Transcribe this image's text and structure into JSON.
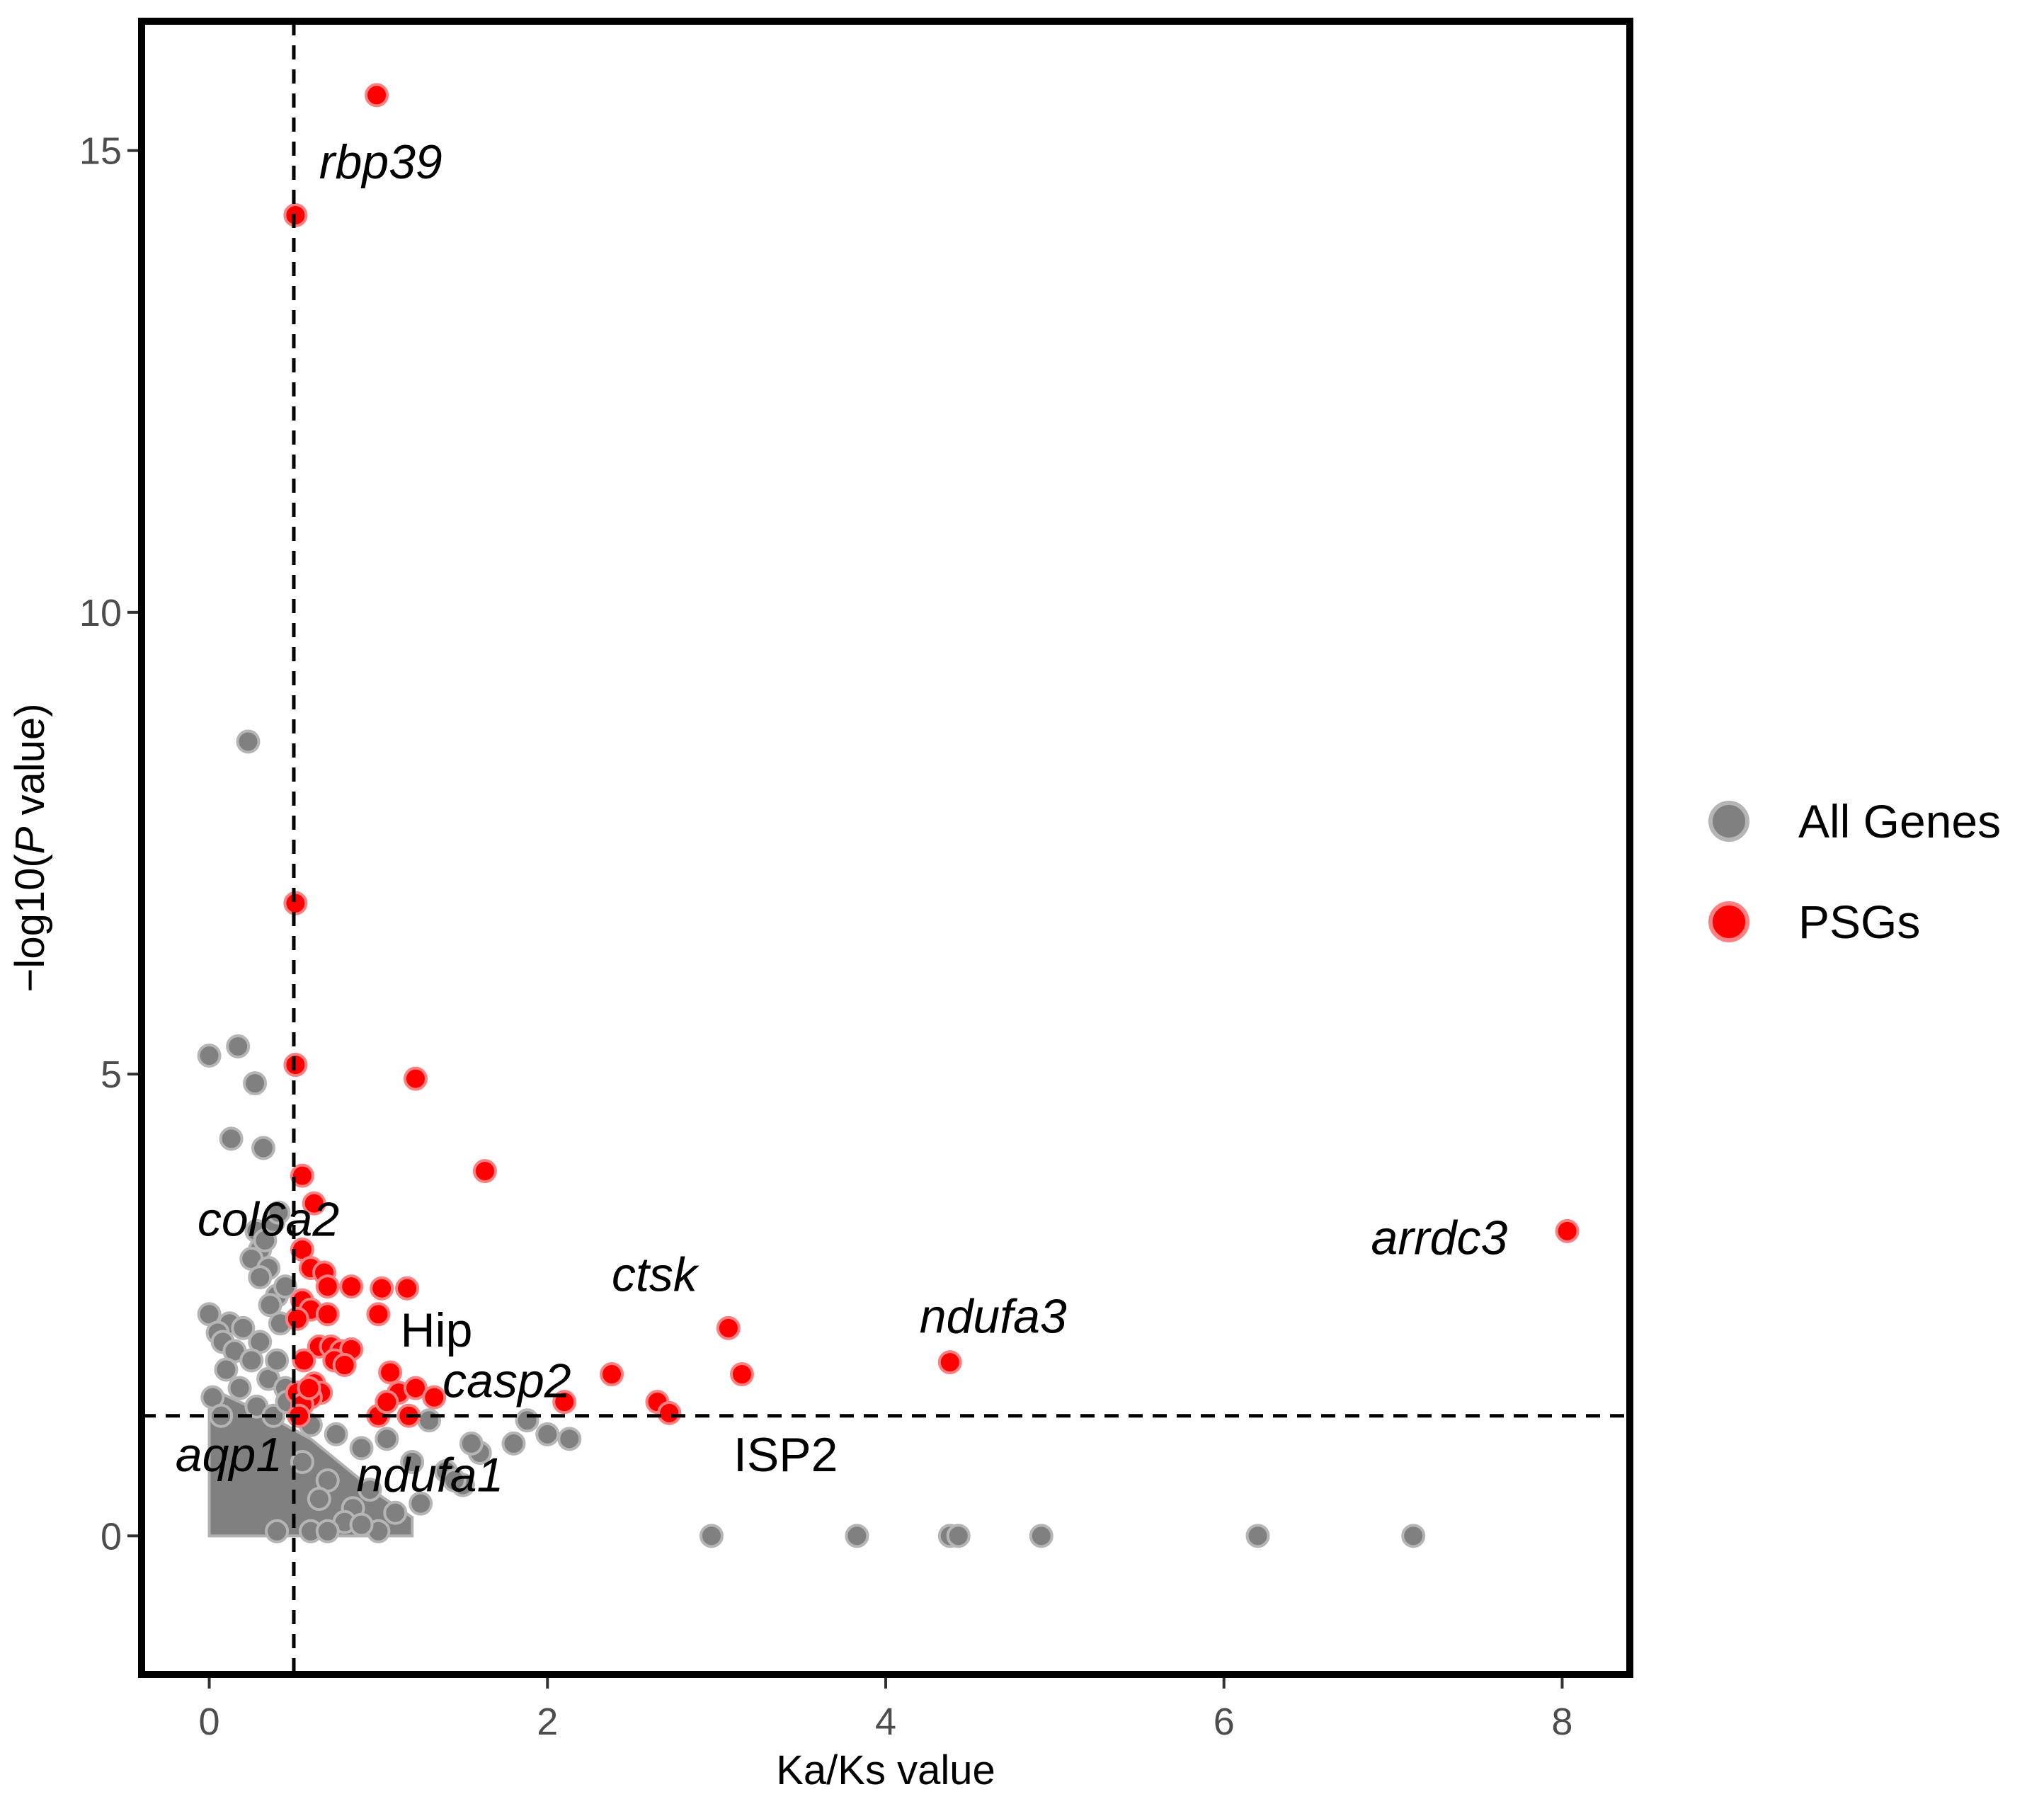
{
  "chart_data": {
    "type": "scatter",
    "title": "",
    "xlabel": "Ka/Ks value",
    "ylabel_prefix": "−log10(",
    "ylabel_italic": "P",
    "ylabel_suffix": " value)",
    "xlim": [
      -0.4,
      8.4
    ],
    "ylim": [
      -1.5,
      16.4
    ],
    "x_ticks": [
      0,
      2,
      4,
      6,
      8
    ],
    "y_ticks": [
      0,
      5,
      10,
      15
    ],
    "x_tick_labels": [
      "0",
      "2",
      "4",
      "6",
      "8"
    ],
    "y_tick_labels": [
      "0",
      "5",
      "10",
      "15"
    ],
    "grid": false,
    "legend_position": "right",
    "reference_lines": {
      "vertical_x": 0.5,
      "horizontal_y": 1.3
    },
    "series": [
      {
        "name": "All Genes",
        "color": "#808080",
        "points": [
          [
            0.23,
            8.6
          ],
          [
            0.17,
            5.3
          ],
          [
            0.0,
            5.2
          ],
          [
            0.27,
            4.9
          ],
          [
            0.13,
            4.3
          ],
          [
            0.32,
            4.2
          ],
          [
            0.28,
            3.3
          ],
          [
            0.3,
            3.1
          ],
          [
            0.25,
            3.0
          ],
          [
            0.35,
            2.9
          ],
          [
            0.33,
            3.2
          ],
          [
            0.38,
            3.4
          ],
          [
            0.41,
            3.5
          ],
          [
            0.3,
            2.8
          ],
          [
            0.4,
            2.6
          ],
          [
            0.45,
            2.7
          ],
          [
            0.36,
            2.5
          ],
          [
            0.42,
            2.3
          ],
          [
            0.0,
            2.4
          ],
          [
            0.12,
            2.3
          ],
          [
            0.05,
            2.2
          ],
          [
            0.2,
            2.25
          ],
          [
            0.08,
            2.1
          ],
          [
            0.15,
            2.0
          ],
          [
            0.3,
            2.1
          ],
          [
            0.25,
            1.9
          ],
          [
            0.1,
            1.8
          ],
          [
            0.35,
            1.7
          ],
          [
            0.4,
            1.9
          ],
          [
            0.45,
            1.6
          ],
          [
            0.02,
            1.5
          ],
          [
            0.18,
            1.6
          ],
          [
            0.28,
            1.4
          ],
          [
            0.38,
            1.3
          ],
          [
            0.46,
            1.45
          ],
          [
            0.07,
            1.3
          ],
          [
            0.6,
            1.2
          ],
          [
            0.75,
            1.1
          ],
          [
            0.9,
            0.95
          ],
          [
            1.05,
            1.05
          ],
          [
            1.2,
            0.8
          ],
          [
            1.3,
            1.25
          ],
          [
            1.4,
            0.7
          ],
          [
            1.5,
            0.55
          ],
          [
            1.6,
            0.9
          ],
          [
            1.8,
            1.0
          ],
          [
            1.88,
            1.25
          ],
          [
            2.0,
            1.1
          ],
          [
            2.13,
            1.05
          ],
          [
            1.25,
            0.35
          ],
          [
            1.1,
            0.25
          ],
          [
            0.95,
            0.5
          ],
          [
            0.85,
            0.3
          ],
          [
            0.7,
            0.6
          ],
          [
            0.55,
            0.8
          ],
          [
            0.65,
            0.4
          ],
          [
            0.8,
            0.15
          ],
          [
            1.0,
            0.05
          ],
          [
            0.6,
            0.05
          ],
          [
            0.4,
            0.05
          ],
          [
            1.55,
            1.0
          ],
          [
            1.45,
            0.6
          ],
          [
            0.7,
            0.05
          ],
          [
            0.9,
            0.12
          ],
          [
            2.97,
            0.0
          ],
          [
            3.83,
            0.0
          ],
          [
            4.38,
            0.0
          ],
          [
            4.43,
            0.0
          ],
          [
            4.92,
            0.0
          ],
          [
            6.2,
            0.0
          ],
          [
            7.12,
            0.0
          ]
        ]
      },
      {
        "name": "PSGs",
        "color": "#ff0000",
        "points": [
          [
            0.99,
            15.6
          ],
          [
            0.51,
            14.3
          ],
          [
            0.51,
            6.85
          ],
          [
            0.51,
            5.1
          ],
          [
            1.22,
            4.95
          ],
          [
            1.63,
            3.95
          ],
          [
            0.55,
            3.9
          ],
          [
            0.62,
            3.6
          ],
          [
            8.03,
            3.3
          ],
          [
            0.55,
            3.1
          ],
          [
            0.6,
            2.9
          ],
          [
            0.68,
            2.85
          ],
          [
            0.7,
            2.7
          ],
          [
            0.84,
            2.7
          ],
          [
            1.02,
            2.68
          ],
          [
            1.17,
            2.68
          ],
          [
            0.55,
            2.55
          ],
          [
            0.6,
            2.45
          ],
          [
            0.52,
            2.35
          ],
          [
            0.7,
            2.4
          ],
          [
            1.0,
            2.4
          ],
          [
            3.07,
            2.25
          ],
          [
            0.65,
            2.05
          ],
          [
            0.72,
            2.05
          ],
          [
            0.78,
            2.0
          ],
          [
            0.84,
            2.02
          ],
          [
            0.56,
            1.9
          ],
          [
            0.74,
            1.9
          ],
          [
            0.8,
            1.85
          ],
          [
            4.38,
            1.88
          ],
          [
            2.38,
            1.75
          ],
          [
            3.15,
            1.75
          ],
          [
            1.07,
            1.77
          ],
          [
            0.62,
            1.65
          ],
          [
            0.66,
            1.55
          ],
          [
            0.6,
            1.5
          ],
          [
            1.12,
            1.55
          ],
          [
            1.22,
            1.6
          ],
          [
            1.33,
            1.5
          ],
          [
            0.52,
            1.55
          ],
          [
            0.55,
            1.42
          ],
          [
            0.59,
            1.6
          ],
          [
            1.0,
            1.3
          ],
          [
            1.05,
            1.45
          ],
          [
            2.1,
            1.45
          ],
          [
            2.65,
            1.45
          ],
          [
            2.72,
            1.33
          ],
          [
            0.53,
            1.3
          ],
          [
            1.18,
            1.3
          ]
        ]
      }
    ],
    "annotations": [
      {
        "text": "rbp39",
        "x": 0.65,
        "y": 14.7,
        "italic": true
      },
      {
        "text": "col6a2",
        "x": -0.07,
        "y": 3.25,
        "italic": true
      },
      {
        "text": "arrdc3",
        "x": 6.87,
        "y": 3.05,
        "italic": true
      },
      {
        "text": "ctsk",
        "x": 2.38,
        "y": 2.65,
        "italic": true
      },
      {
        "text": "ndufa3",
        "x": 4.2,
        "y": 2.2,
        "italic": true
      },
      {
        "text": "Hip",
        "x": 1.13,
        "y": 2.05,
        "italic": false
      },
      {
        "text": "casp2",
        "x": 1.38,
        "y": 1.5,
        "italic": true
      },
      {
        "text": "aqp1",
        "x": -0.2,
        "y": 0.7,
        "italic": true
      },
      {
        "text": "ISP2",
        "x": 3.1,
        "y": 0.7,
        "italic": false
      },
      {
        "text": "ndufa1",
        "x": 0.87,
        "y": 0.48,
        "italic": true
      }
    ]
  }
}
